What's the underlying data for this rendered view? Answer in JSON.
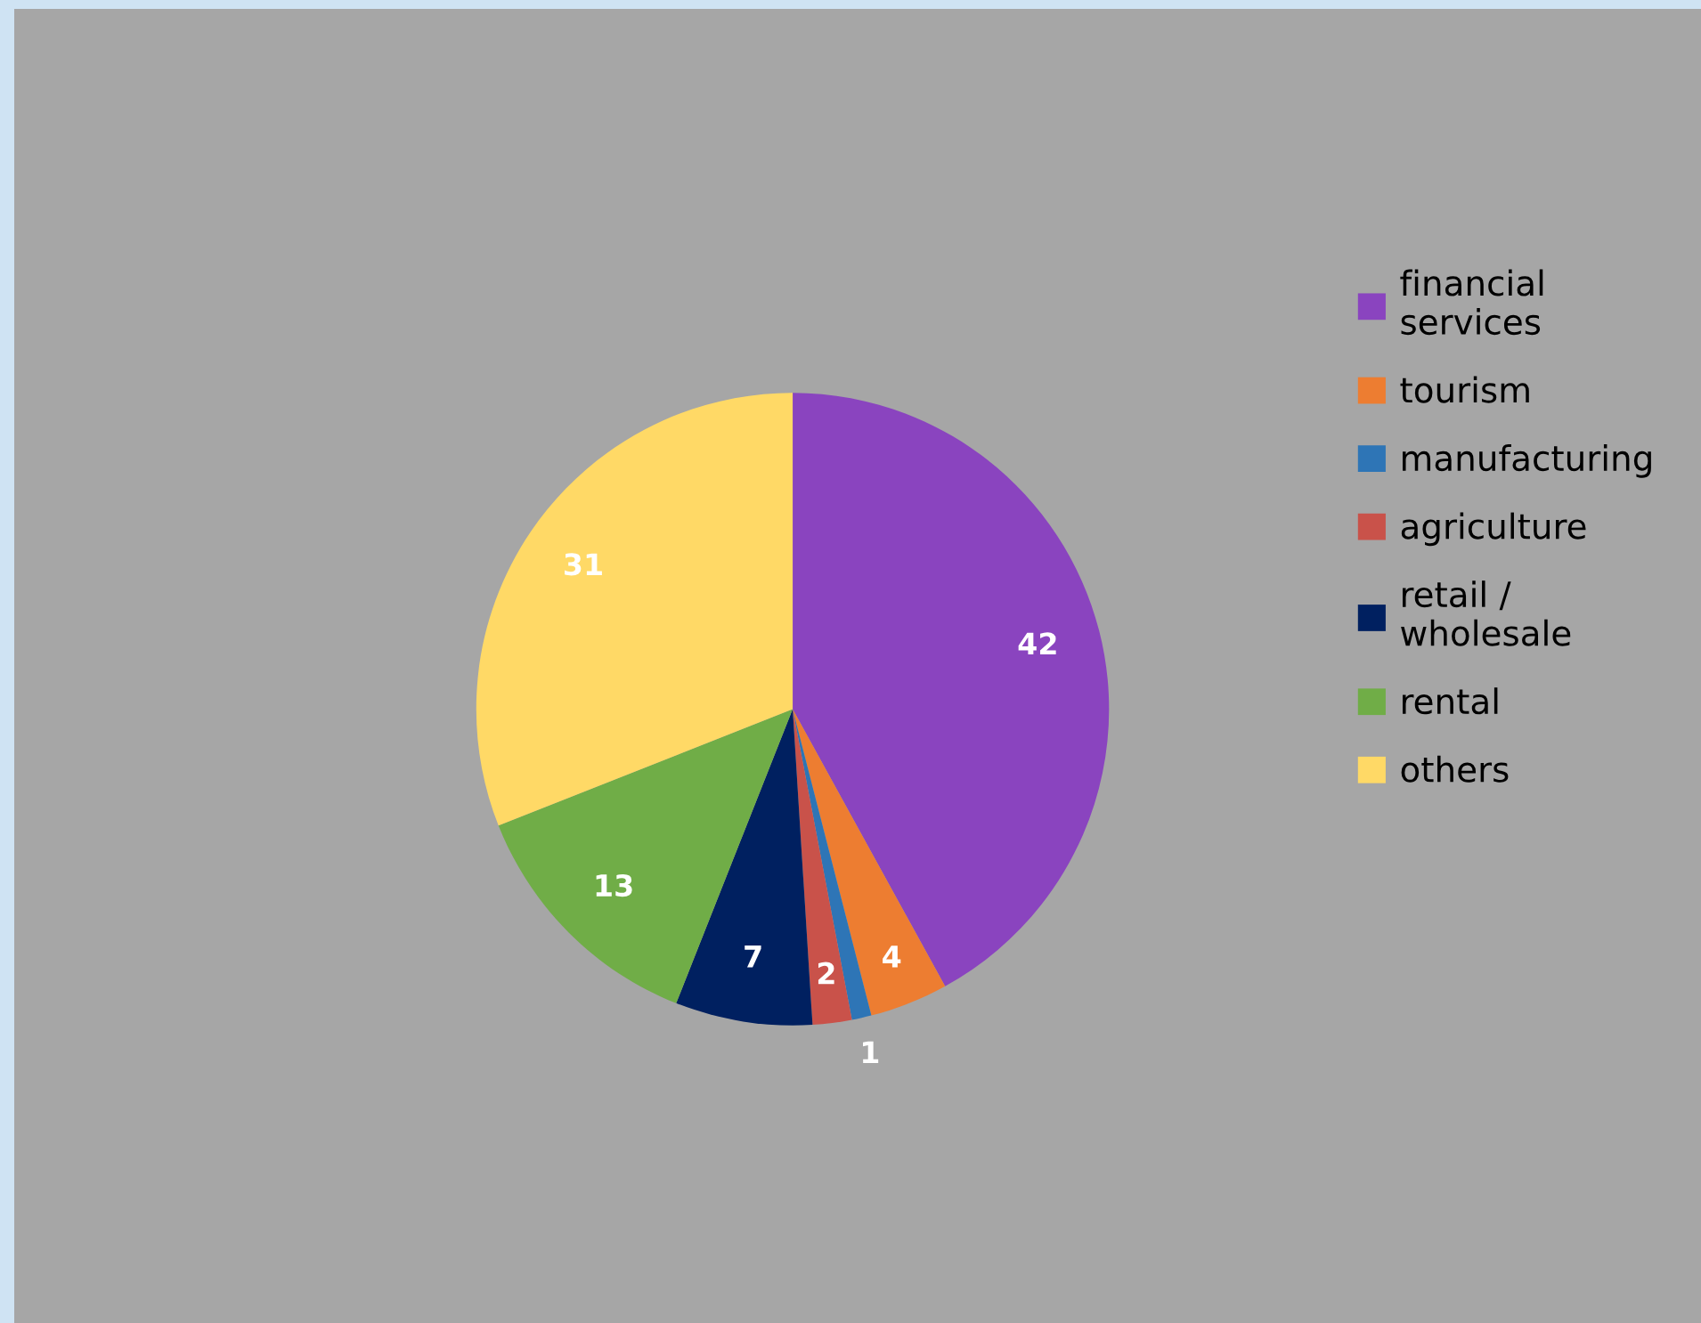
{
  "chart_data": {
    "type": "pie",
    "categories": [
      "financial\nservices",
      "tourism",
      "manufacturing",
      "agriculture",
      "retail /\nwholesale",
      "rental",
      "others"
    ],
    "values": [
      42,
      4,
      1,
      2,
      7,
      13,
      31
    ],
    "colors": [
      "#8a44bf",
      "#ed7d31",
      "#2e75b6",
      "#c9524a",
      "#002060",
      "#70ad47",
      "#ffd966"
    ],
    "data_labels": true,
    "legend": "right"
  }
}
